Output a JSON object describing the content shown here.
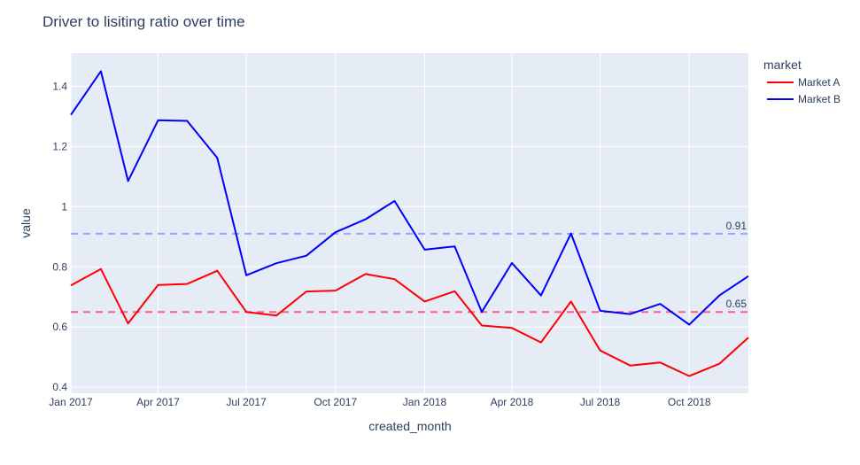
{
  "chart_data": {
    "type": "line",
    "title": "Driver to lisiting ratio over time",
    "xlabel": "created_month",
    "ylabel": "value",
    "x": [
      "2017-01",
      "2017-02",
      "2017-03",
      "2017-04",
      "2017-05",
      "2017-06",
      "2017-07",
      "2017-08",
      "2017-09",
      "2017-10",
      "2017-11",
      "2017-12",
      "2018-01",
      "2018-02",
      "2018-03",
      "2018-04",
      "2018-05",
      "2018-06",
      "2018-07",
      "2018-08",
      "2018-09",
      "2018-10",
      "2018-11",
      "2018-12"
    ],
    "xlim": [
      "2017-01-01",
      "2018-12-01"
    ],
    "x_ticks": [
      {
        "date": "2017-01-01",
        "label": "Jan 2017"
      },
      {
        "date": "2017-04-01",
        "label": "Apr 2017"
      },
      {
        "date": "2017-07-01",
        "label": "Jul 2017"
      },
      {
        "date": "2017-10-01",
        "label": "Oct 2017"
      },
      {
        "date": "2018-01-01",
        "label": "Jan 2018"
      },
      {
        "date": "2018-04-01",
        "label": "Apr 2018"
      },
      {
        "date": "2018-07-01",
        "label": "Jul 2018"
      },
      {
        "date": "2018-10-01",
        "label": "Oct 2018"
      }
    ],
    "ylim": [
      0.38,
      1.51
    ],
    "y_ticks": [
      {
        "value": 0.4,
        "label": "0.4"
      },
      {
        "value": 0.6,
        "label": "0.6"
      },
      {
        "value": 0.8,
        "label": "0.8"
      },
      {
        "value": 1.0,
        "label": "1"
      },
      {
        "value": 1.2,
        "label": "1.2"
      },
      {
        "value": 1.4,
        "label": "1.4"
      }
    ],
    "legend_title": "market",
    "legend_position": "right",
    "grid": true,
    "series": [
      {
        "name": "Market A",
        "color": "#ff0000",
        "values": [
          0.738,
          0.793,
          0.612,
          0.74,
          0.743,
          0.787,
          0.65,
          0.638,
          0.718,
          0.721,
          0.776,
          0.759,
          0.685,
          0.719,
          0.605,
          0.597,
          0.549,
          0.685,
          0.522,
          0.472,
          0.482,
          0.437,
          0.478,
          0.565
        ]
      },
      {
        "name": "Market B",
        "color": "#0000ff",
        "values": [
          1.305,
          1.45,
          1.085,
          1.287,
          1.285,
          1.162,
          0.772,
          0.812,
          0.837,
          0.915,
          0.958,
          1.019,
          0.857,
          0.868,
          0.65,
          0.813,
          0.705,
          0.911,
          0.654,
          0.643,
          0.677,
          0.608,
          0.705,
          0.769
        ]
      }
    ],
    "reference_lines": [
      {
        "value": 0.91,
        "label": "0.91",
        "color": "#9aa3ff"
      },
      {
        "value": 0.65,
        "label": "0.65",
        "color": "#ff5f86"
      }
    ],
    "colors": {
      "plot_bg": "#e5ecf6",
      "grid": "#ffffff",
      "text": "#2a3f5f"
    }
  }
}
